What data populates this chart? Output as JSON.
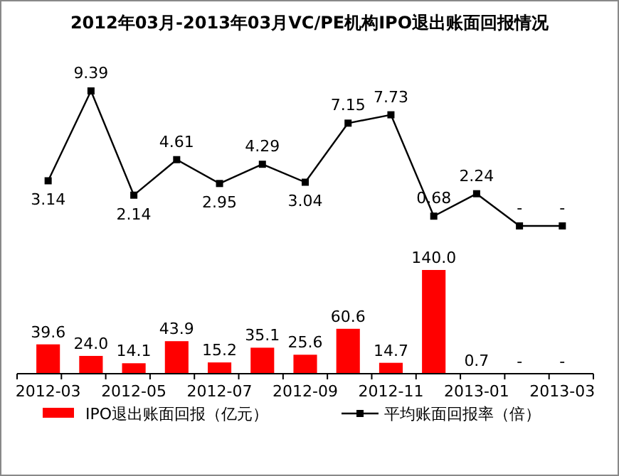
{
  "chart_data": [
    {
      "type": "line",
      "title": "2012年03月-2013年03月VC/PE机构IPO退出账面回报情况",
      "categories": [
        null,
        null,
        null,
        null,
        null,
        null,
        null,
        null,
        null,
        null,
        null,
        null,
        null
      ],
      "series": [
        {
          "name": "平均账面回报率（倍）",
          "color": "#000000",
          "values": [
            3.14,
            9.39,
            2.14,
            4.61,
            2.95,
            4.29,
            3.04,
            7.15,
            7.73,
            0.68,
            2.24,
            0,
            0
          ],
          "value_labels": [
            "3.14",
            "9.39",
            "2.14",
            "4.61",
            "2.95",
            "4.29",
            "3.04",
            "7.15",
            "7.73",
            "0.68",
            "2.24",
            "-",
            "-"
          ]
        }
      ],
      "tick_labels": false,
      "legend": "bottom",
      "marker": "square",
      "line_style": "solid"
    },
    {
      "type": "bar",
      "categories": [
        "2012-03",
        null,
        "2012-05",
        null,
        "2012-07",
        null,
        "2012-09",
        null,
        "2012-11",
        null,
        "2013-01",
        null,
        "2013-03"
      ],
      "series": [
        {
          "name": "IPO退出账面回报（亿元）",
          "color": "#ff0000",
          "values": [
            39.6,
            24.0,
            14.1,
            43.9,
            15.2,
            35.1,
            25.6,
            60.6,
            14.7,
            140.0,
            0.7,
            0,
            0
          ],
          "value_labels": [
            "39.6",
            "24.0",
            "14.1",
            "43.9",
            "15.2",
            "35.1",
            "25.6",
            "60.6",
            "14.7",
            "140.0",
            "0.7",
            "-",
            "-"
          ]
        }
      ],
      "tick_labels": "x",
      "legend": "bottom"
    }
  ]
}
